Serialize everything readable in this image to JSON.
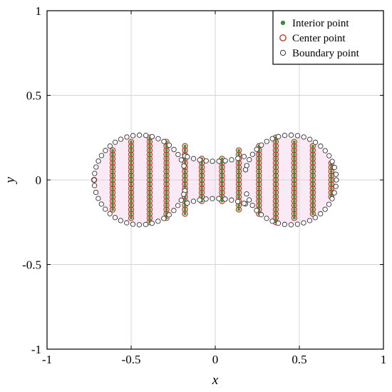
{
  "chart_data": {
    "type": "scatter",
    "xlabel": "x",
    "ylabel": "y",
    "xlim": [
      -1,
      1
    ],
    "ylim": [
      -1,
      1
    ],
    "xticks": [
      "-1",
      "-0.5",
      "0",
      "0.5",
      "1"
    ],
    "yticks": [
      "-1",
      "-0.5",
      "0",
      "0.5",
      "1"
    ],
    "xtick_values": [
      -1,
      -0.5,
      0,
      0.5,
      1
    ],
    "ytick_values": [
      -1,
      -0.5,
      0,
      0.5,
      1
    ],
    "grid": true,
    "legend_position": "top-right",
    "colors": {
      "interior_fill": "#2e9e2e",
      "center_edge": "#c0392b",
      "boundary_edge": "#333333",
      "fill_region": "#f6d8ee",
      "grid": "#d4d4d4"
    },
    "series": [
      {
        "name": "Interior point",
        "marker": "filled-dot",
        "columns_x": [
          -0.72,
          -0.61,
          -0.5,
          -0.39,
          -0.29,
          -0.18,
          -0.08,
          0.04,
          0.14,
          0.26,
          0.36,
          0.47,
          0.58,
          0.69
        ],
        "columns_half_height": [
          0.02,
          0.19,
          0.24,
          0.25,
          0.23,
          0.2,
          0.13,
          0.13,
          0.18,
          0.22,
          0.25,
          0.24,
          0.21,
          0.11
        ],
        "row_spacing": 0.025
      },
      {
        "name": "Center point",
        "marker": "red-circle",
        "columns_x": [
          -0.72,
          -0.61,
          -0.5,
          -0.39,
          -0.29,
          -0.18,
          -0.08,
          0.04,
          0.14,
          0.26,
          0.36,
          0.47,
          0.58,
          0.69
        ],
        "columns_half_height": [
          0.02,
          0.19,
          0.24,
          0.25,
          0.23,
          0.2,
          0.13,
          0.13,
          0.18,
          0.22,
          0.25,
          0.24,
          0.21,
          0.11
        ],
        "row_spacing": 0.025
      },
      {
        "name": "Boundary point",
        "marker": "open-circle",
        "parametric": {
          "a": 0.72,
          "b": 0.8,
          "c": 0.1,
          "count": 110
        }
      }
    ]
  }
}
